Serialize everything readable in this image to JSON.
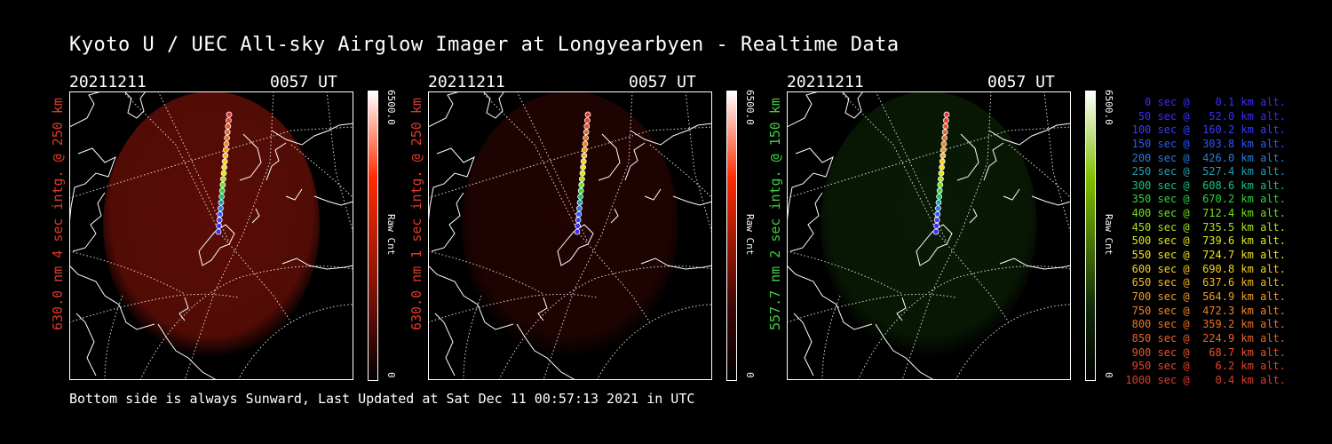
{
  "title": "Kyoto U / UEC All-sky Airglow Imager at Longyearbyen - Realtime Data",
  "footer": "Bottom side is always Sunward, Last Updated at Sat Dec 11 00:57:13 2021 in UTC",
  "panels": [
    {
      "date": "20211211",
      "time": "0057 UT",
      "side_label": "630.0 nm 4 sec intg. @ 250 km",
      "label_color": "#e0392b",
      "cbar_max": "6500.0",
      "cbar_min": "0",
      "cbar_unit": "Raw Cnt",
      "cbar_top_color": "#ff2a00",
      "glow_color": "#6a0f08",
      "glow_opacity": 0.85
    },
    {
      "date": "20211211",
      "time": "0057 UT",
      "side_label": "630.0 nm 1 sec intg. @ 250 km",
      "label_color": "#e0392b",
      "cbar_max": "6500.0",
      "cbar_min": "0",
      "cbar_unit": "Raw Cnt",
      "cbar_top_color": "#ff2a00",
      "glow_color": "#3a0604",
      "glow_opacity": 0.55
    },
    {
      "date": "20211211",
      "time": "0057 UT",
      "side_label": "557.7 nm 2 sec intg. @ 150 km",
      "label_color": "#3fd13f",
      "cbar_max": "6500.0",
      "cbar_min": "0",
      "cbar_unit": "Raw Cnt",
      "cbar_top_color": "#7fbf00",
      "glow_color": "#0f2a08",
      "glow_opacity": 0.6
    }
  ],
  "trajectory": {
    "legend": [
      {
        "text": "0 sec @    0.1 km alt.",
        "color": "#3a2bff"
      },
      {
        "text": "50 sec @   52.0 km alt.",
        "color": "#3a2bff"
      },
      {
        "text": "100 sec @  160.2 km alt.",
        "color": "#3a3bff"
      },
      {
        "text": "150 sec @  303.8 km alt.",
        "color": "#2f55ff"
      },
      {
        "text": "200 sec @  426.0 km alt.",
        "color": "#2a7bd8"
      },
      {
        "text": "250 sec @  527.4 km alt.",
        "color": "#1fa0b0"
      },
      {
        "text": "300 sec @  608.6 km alt.",
        "color": "#18c27a"
      },
      {
        "text": "350 sec @  670.2 km alt.",
        "color": "#2fd43a"
      },
      {
        "text": "400 sec @  712.4 km alt.",
        "color": "#6fe01a"
      },
      {
        "text": "450 sec @  735.5 km alt.",
        "color": "#a8e418"
      },
      {
        "text": "500 sec @  739.6 km alt.",
        "color": "#d8e81a"
      },
      {
        "text": "550 sec @  724.7 km alt.",
        "color": "#f2e21c"
      },
      {
        "text": "600 sec @  690.8 km alt.",
        "color": "#f6cf1e"
      },
      {
        "text": "650 sec @  637.6 km alt.",
        "color": "#f6b420"
      },
      {
        "text": "700 sec @  564.9 km alt.",
        "color": "#f39a22"
      },
      {
        "text": "750 sec @  472.3 km alt.",
        "color": "#ef8424"
      },
      {
        "text": "800 sec @  359.2 km alt.",
        "color": "#ec7226"
      },
      {
        "text": "850 sec @  224.9 km alt.",
        "color": "#e86228"
      },
      {
        "text": "900 sec @   68.7 km alt.",
        "color": "#e4522a"
      },
      {
        "text": "950 sec @    6.2 km alt.",
        "color": "#e2442b"
      },
      {
        "text": "1000 sec @    0.4 km alt.",
        "color": "#e0392b"
      }
    ]
  },
  "features": {
    "coastline_color": "#ffffff",
    "graticule_color": "#ffffff"
  }
}
